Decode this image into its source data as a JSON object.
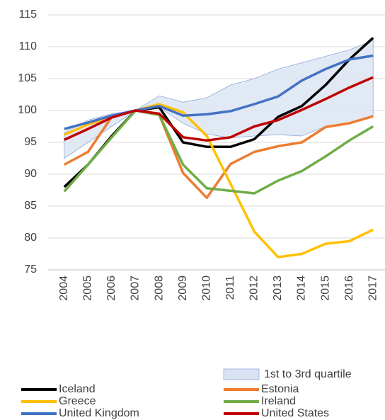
{
  "chart_data": {
    "type": "line",
    "categories": [
      "2004",
      "2005",
      "2006",
      "2007",
      "2008",
      "2009",
      "2010",
      "2011",
      "2012",
      "2013",
      "2014",
      "2015",
      "2016",
      "2017"
    ],
    "band": {
      "name": "1st to 3rd quartile",
      "color": "#dae3f3",
      "edge": "#8faadc",
      "lower": [
        92.5,
        95,
        97.5,
        100,
        100.5,
        98,
        96.3,
        95.7,
        96,
        96.2,
        96,
        97.5,
        98,
        99
      ],
      "upper": [
        96.5,
        98.5,
        99.5,
        100,
        102.3,
        101.3,
        102,
        104,
        105,
        106.5,
        107.5,
        108.5,
        109.5,
        111
      ]
    },
    "series": [
      {
        "name": "Iceland",
        "color": "#000000",
        "values": [
          88,
          91.5,
          96,
          100,
          100.5,
          95,
          94.3,
          94.3,
          95.5,
          99,
          100.7,
          104,
          108,
          111.4
        ]
      },
      {
        "name": "Estonia",
        "color": "#ed7d31",
        "values": [
          91.5,
          93.5,
          99,
          100,
          99.3,
          90.2,
          86.3,
          91.6,
          93.5,
          94.4,
          95,
          97.4,
          98,
          99.1
        ]
      },
      {
        "name": "Greece",
        "color": "#ffc000",
        "values": [
          96.2,
          97.8,
          99,
          100,
          101,
          99.7,
          96,
          88.5,
          81,
          77,
          77.5,
          79.1,
          79.5,
          81.3
        ]
      },
      {
        "name": "Ireland",
        "color": "#70ad47",
        "values": [
          87.3,
          91.5,
          95.8,
          100,
          99.3,
          91.5,
          87.8,
          87.4,
          87,
          89,
          90.5,
          92.8,
          95.3,
          97.5
        ]
      },
      {
        "name": "United Kingdom",
        "color": "#4472c4",
        "values": [
          97.1,
          98.1,
          99.2,
          100,
          100.7,
          99.2,
          99.4,
          99.9,
          101,
          102.2,
          104.7,
          106.5,
          108,
          108.6
        ]
      },
      {
        "name": "United States",
        "color": "#c00000",
        "values": [
          95.4,
          97.1,
          98.9,
          100,
          99.5,
          95.8,
          95.3,
          95.8,
          97.5,
          98.5,
          100.1,
          101.8,
          103.6,
          105.2
        ]
      }
    ],
    "ylim": [
      75,
      115
    ],
    "yticks": [
      75,
      80,
      85,
      90,
      95,
      100,
      105,
      110,
      115
    ],
    "grid": true
  }
}
